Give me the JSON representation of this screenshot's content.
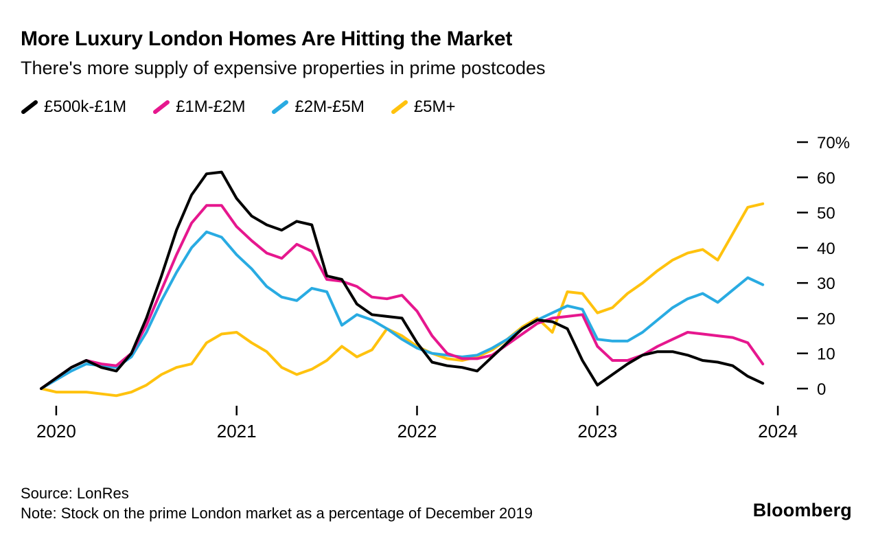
{
  "header": {
    "title": "More Luxury London Homes Are Hitting the Market",
    "subtitle": "There's more supply of expensive properties in prime postcodes"
  },
  "legend": {
    "items": [
      {
        "label": "£500k-£1M",
        "color": "#000000"
      },
      {
        "label": "£1M-£2M",
        "color": "#e6178e"
      },
      {
        "label": "£2M-£5M",
        "color": "#29abe2"
      },
      {
        "label": "£5M+",
        "color": "#ffc20e"
      }
    ]
  },
  "chart_data": {
    "type": "line",
    "title": "More Luxury London Homes Are Hitting the Market",
    "subtitle": "There's more supply of expensive properties in prime postcodes",
    "ylabel": "Stock on the prime London market as a percentage of December 2019 (%)",
    "xlabel": "",
    "grid": false,
    "legend_position": "top-left",
    "axis_side": "right",
    "ylim": [
      -5,
      72
    ],
    "x_unit": "month",
    "x": [
      "2019-12",
      "2020-01",
      "2020-02",
      "2020-03",
      "2020-04",
      "2020-05",
      "2020-06",
      "2020-07",
      "2020-08",
      "2020-09",
      "2020-10",
      "2020-11",
      "2020-12",
      "2021-01",
      "2021-02",
      "2021-03",
      "2021-04",
      "2021-05",
      "2021-06",
      "2021-07",
      "2021-08",
      "2021-09",
      "2021-10",
      "2021-11",
      "2021-12",
      "2022-01",
      "2022-02",
      "2022-03",
      "2022-04",
      "2022-05",
      "2022-06",
      "2022-07",
      "2022-08",
      "2022-09",
      "2022-10",
      "2022-11",
      "2022-12",
      "2023-01",
      "2023-02",
      "2023-03",
      "2023-04",
      "2023-05",
      "2023-06",
      "2023-07",
      "2023-08",
      "2023-09",
      "2023-10",
      "2023-11",
      "2023-12"
    ],
    "y_ticks": {
      "values": [
        0,
        10,
        20,
        30,
        40,
        50,
        60,
        70
      ],
      "labels": [
        "0",
        "10",
        "20",
        "30",
        "40",
        "50",
        "60",
        "70%"
      ]
    },
    "x_ticks": {
      "positions": [
        1,
        13,
        25,
        37,
        49
      ],
      "labels": [
        "2020",
        "2021",
        "2022",
        "2023",
        "2024"
      ]
    },
    "series": [
      {
        "name": "£500k-£1M",
        "color": "#000000",
        "values": [
          0,
          3,
          6,
          8,
          6,
          5,
          10,
          20,
          32,
          45,
          55,
          61,
          61.5,
          54,
          49,
          46.5,
          45,
          47.5,
          46.5,
          32,
          31,
          24,
          21,
          20.5,
          20,
          13,
          7.5,
          6.5,
          6,
          5,
          9,
          13,
          17,
          19.5,
          19,
          17,
          8,
          1,
          4,
          7,
          9.5,
          10.5,
          10.5,
          9.5,
          8,
          7.5,
          6.5,
          3.5,
          1.5
        ]
      },
      {
        "name": "£1M-£2M",
        "color": "#e6178e",
        "values": [
          0,
          3,
          6,
          8,
          7,
          6.5,
          10,
          18,
          28,
          38,
          47,
          52,
          52,
          46,
          42,
          38.5,
          37,
          41,
          39,
          31,
          30.5,
          29,
          26,
          25.5,
          26.5,
          22,
          15,
          10,
          8.5,
          8.5,
          9.5,
          12.5,
          15.5,
          18.5,
          20,
          20.5,
          21,
          12,
          8,
          8,
          9.5,
          12,
          14,
          16,
          15.5,
          15,
          14.5,
          13,
          7
        ]
      },
      {
        "name": "£2M-£5M",
        "color": "#29abe2",
        "values": [
          0,
          2.5,
          5,
          7,
          6.5,
          6,
          9,
          16,
          25,
          33,
          40,
          44.5,
          43,
          38,
          34,
          29,
          26,
          25,
          28.5,
          27.5,
          18,
          21,
          19.5,
          17,
          14,
          11.5,
          10,
          9.5,
          9,
          9.5,
          11.5,
          14,
          17,
          19.5,
          21.5,
          23.5,
          22.5,
          14,
          13.5,
          13.5,
          16,
          19.5,
          23,
          25.5,
          27,
          24.5,
          28,
          31.5,
          29.5
        ]
      },
      {
        "name": "£5M+",
        "color": "#ffc20e",
        "values": [
          0,
          -1,
          -1,
          -1,
          -1.5,
          -2,
          -1,
          1,
          4,
          6,
          7,
          13,
          15.5,
          16,
          13,
          10.5,
          6,
          4,
          5.5,
          8,
          12,
          9,
          11,
          17,
          15,
          12,
          10,
          8.5,
          8,
          9,
          11,
          14,
          17.5,
          20,
          16,
          27.5,
          27,
          21.5,
          23,
          27,
          30,
          33.5,
          36.5,
          38.5,
          39.5,
          36.5,
          44,
          51.5,
          52.5
        ]
      }
    ]
  },
  "footer": {
    "source": "Source: LonRes",
    "note": "Note: Stock on the prime London market as a percentage of December 2019",
    "brand": "Bloomberg"
  }
}
